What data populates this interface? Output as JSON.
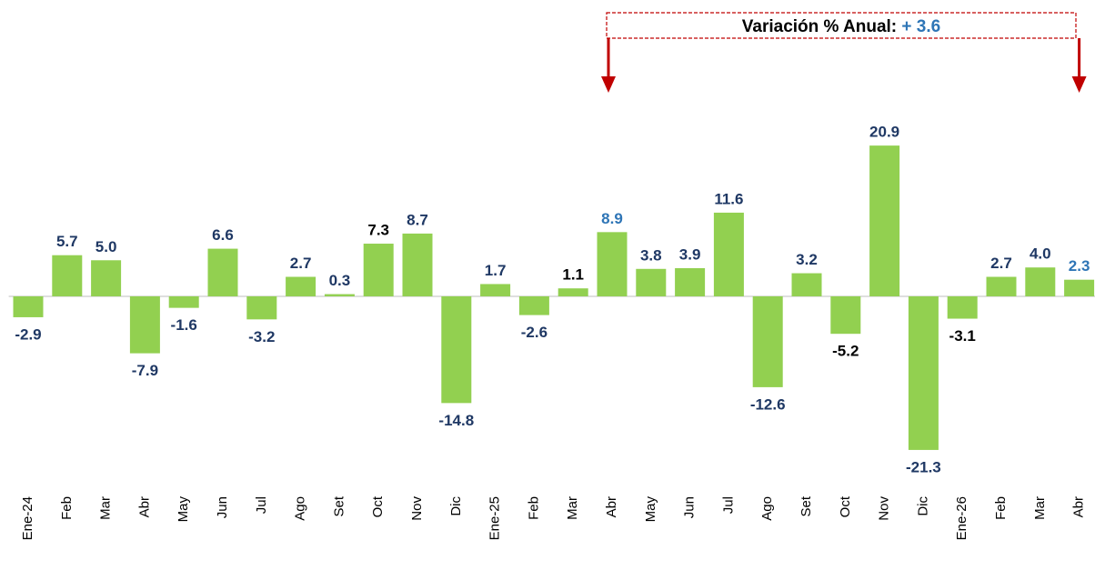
{
  "chart_data": {
    "type": "bar",
    "categories": [
      "Ene-24",
      "Feb",
      "Mar",
      "Abr",
      "May",
      "Jun",
      "Jul",
      "Ago",
      "Set",
      "Oct",
      "Nov",
      "Dic",
      "Ene-25",
      "Feb",
      "Mar",
      "Abr",
      "May",
      "Jun",
      "Jul",
      "Ago",
      "Set",
      "Oct",
      "Nov",
      "Dic",
      "Ene-26",
      "Feb",
      "Mar",
      "Abr"
    ],
    "values": [
      -2.9,
      5.7,
      5.0,
      -7.9,
      -1.6,
      6.6,
      -3.2,
      2.7,
      0.3,
      7.3,
      8.7,
      -14.8,
      1.7,
      -2.6,
      1.1,
      8.9,
      3.8,
      3.9,
      11.6,
      -12.6,
      3.2,
      -5.2,
      20.9,
      -21.3,
      -3.1,
      2.7,
      4.0,
      2.3
    ],
    "value_labels": [
      "-2.9",
      "5.7",
      "5.0",
      "-7.9",
      "-1.6",
      "6.6",
      "-3.2",
      "2.7",
      "0.3",
      "7.3",
      "8.7",
      "-14.8",
      "1.7",
      "-2.6",
      "1.1",
      "8.9",
      "3.8",
      "3.9",
      "11.6",
      "-12.6",
      "3.2",
      "-5.2",
      "20.9",
      "-21.3",
      "-3.1",
      "2.7",
      "4.0",
      "2.3"
    ],
    "label_colors": [
      "#1f3864",
      "#1f3864",
      "#1f3864",
      "#1f3864",
      "#1f3864",
      "#1f3864",
      "#1f3864",
      "#1f3864",
      "#1f3864",
      "#000000",
      "#1f3864",
      "#1f3864",
      "#1f3864",
      "#1f3864",
      "#000000",
      "#2e75b6",
      "#1f3864",
      "#1f3864",
      "#1f3864",
      "#1f3864",
      "#1f3864",
      "#000000",
      "#1f3864",
      "#1f3864",
      "#000000",
      "#1f3864",
      "#1f3864",
      "#2e75b6"
    ],
    "color": "#92d050",
    "ylim": [
      -23.2,
      31
    ],
    "annotation": {
      "text": "Variación % Anual:",
      "value_label": "+ 3.6",
      "color": "#c00000",
      "value_color": "#2e75b6"
    }
  }
}
